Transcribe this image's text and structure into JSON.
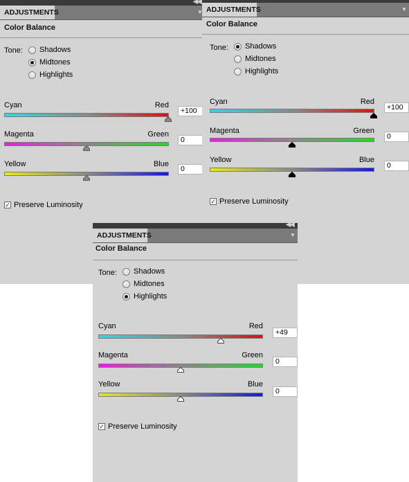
{
  "panels": [
    {
      "tab_label": "ADJUSTMENTS",
      "title": "Color Balance",
      "tone_label": "Tone:",
      "tones": [
        {
          "label": "Shadows",
          "selected": false
        },
        {
          "label": "Midtones",
          "selected": true
        },
        {
          "label": "Highlights",
          "selected": false
        }
      ],
      "sliders": [
        {
          "left": "Cyan",
          "right": "Red",
          "value": "+100",
          "level": 100
        },
        {
          "left": "Magenta",
          "right": "Green",
          "value": "0",
          "level": 0
        },
        {
          "left": "Yellow",
          "right": "Blue",
          "value": "0",
          "level": 0
        }
      ],
      "preserve_label": "Preserve Luminosity",
      "preserve_checked": true
    },
    {
      "tab_label": "ADJUSTMENTS",
      "title": "Color Balance",
      "tone_label": "Tone:",
      "tones": [
        {
          "label": "Shadows",
          "selected": true
        },
        {
          "label": "Midtones",
          "selected": false
        },
        {
          "label": "Highlights",
          "selected": false
        }
      ],
      "sliders": [
        {
          "left": "Cyan",
          "right": "Red",
          "value": "+100",
          "level": 100
        },
        {
          "left": "Magenta",
          "right": "Green",
          "value": "0",
          "level": 0
        },
        {
          "left": "Yellow",
          "right": "Blue",
          "value": "0",
          "level": 0
        }
      ],
      "preserve_label": "Preserve Luminosity",
      "preserve_checked": true
    },
    {
      "tab_label": "ADJUSTMENTS",
      "title": "Color Balance",
      "tone_label": "Tone:",
      "tones": [
        {
          "label": "Shadows",
          "selected": false
        },
        {
          "label": "Midtones",
          "selected": false
        },
        {
          "label": "Highlights",
          "selected": true
        }
      ],
      "sliders": [
        {
          "left": "Cyan",
          "right": "Red",
          "value": "+49",
          "level": 49
        },
        {
          "left": "Magenta",
          "right": "Green",
          "value": "0",
          "level": 0
        },
        {
          "left": "Yellow",
          "right": "Blue",
          "value": "0",
          "level": 0
        }
      ],
      "preserve_label": "Preserve Luminosity",
      "preserve_checked": true
    }
  ],
  "colors": {
    "cyan": "#2fd8e6",
    "red": "#e01010",
    "magenta": "#e81ee0",
    "green": "#28d828",
    "yellow": "#e8e81a",
    "blue": "#1818e0",
    "thumb_midtones": "#8a8a8a",
    "thumb_shadows": "#000000",
    "thumb_highlights": "#ffffff"
  },
  "icons": {
    "collapse": "double-chevron-right-icon",
    "menu": "panel-menu-icon"
  }
}
